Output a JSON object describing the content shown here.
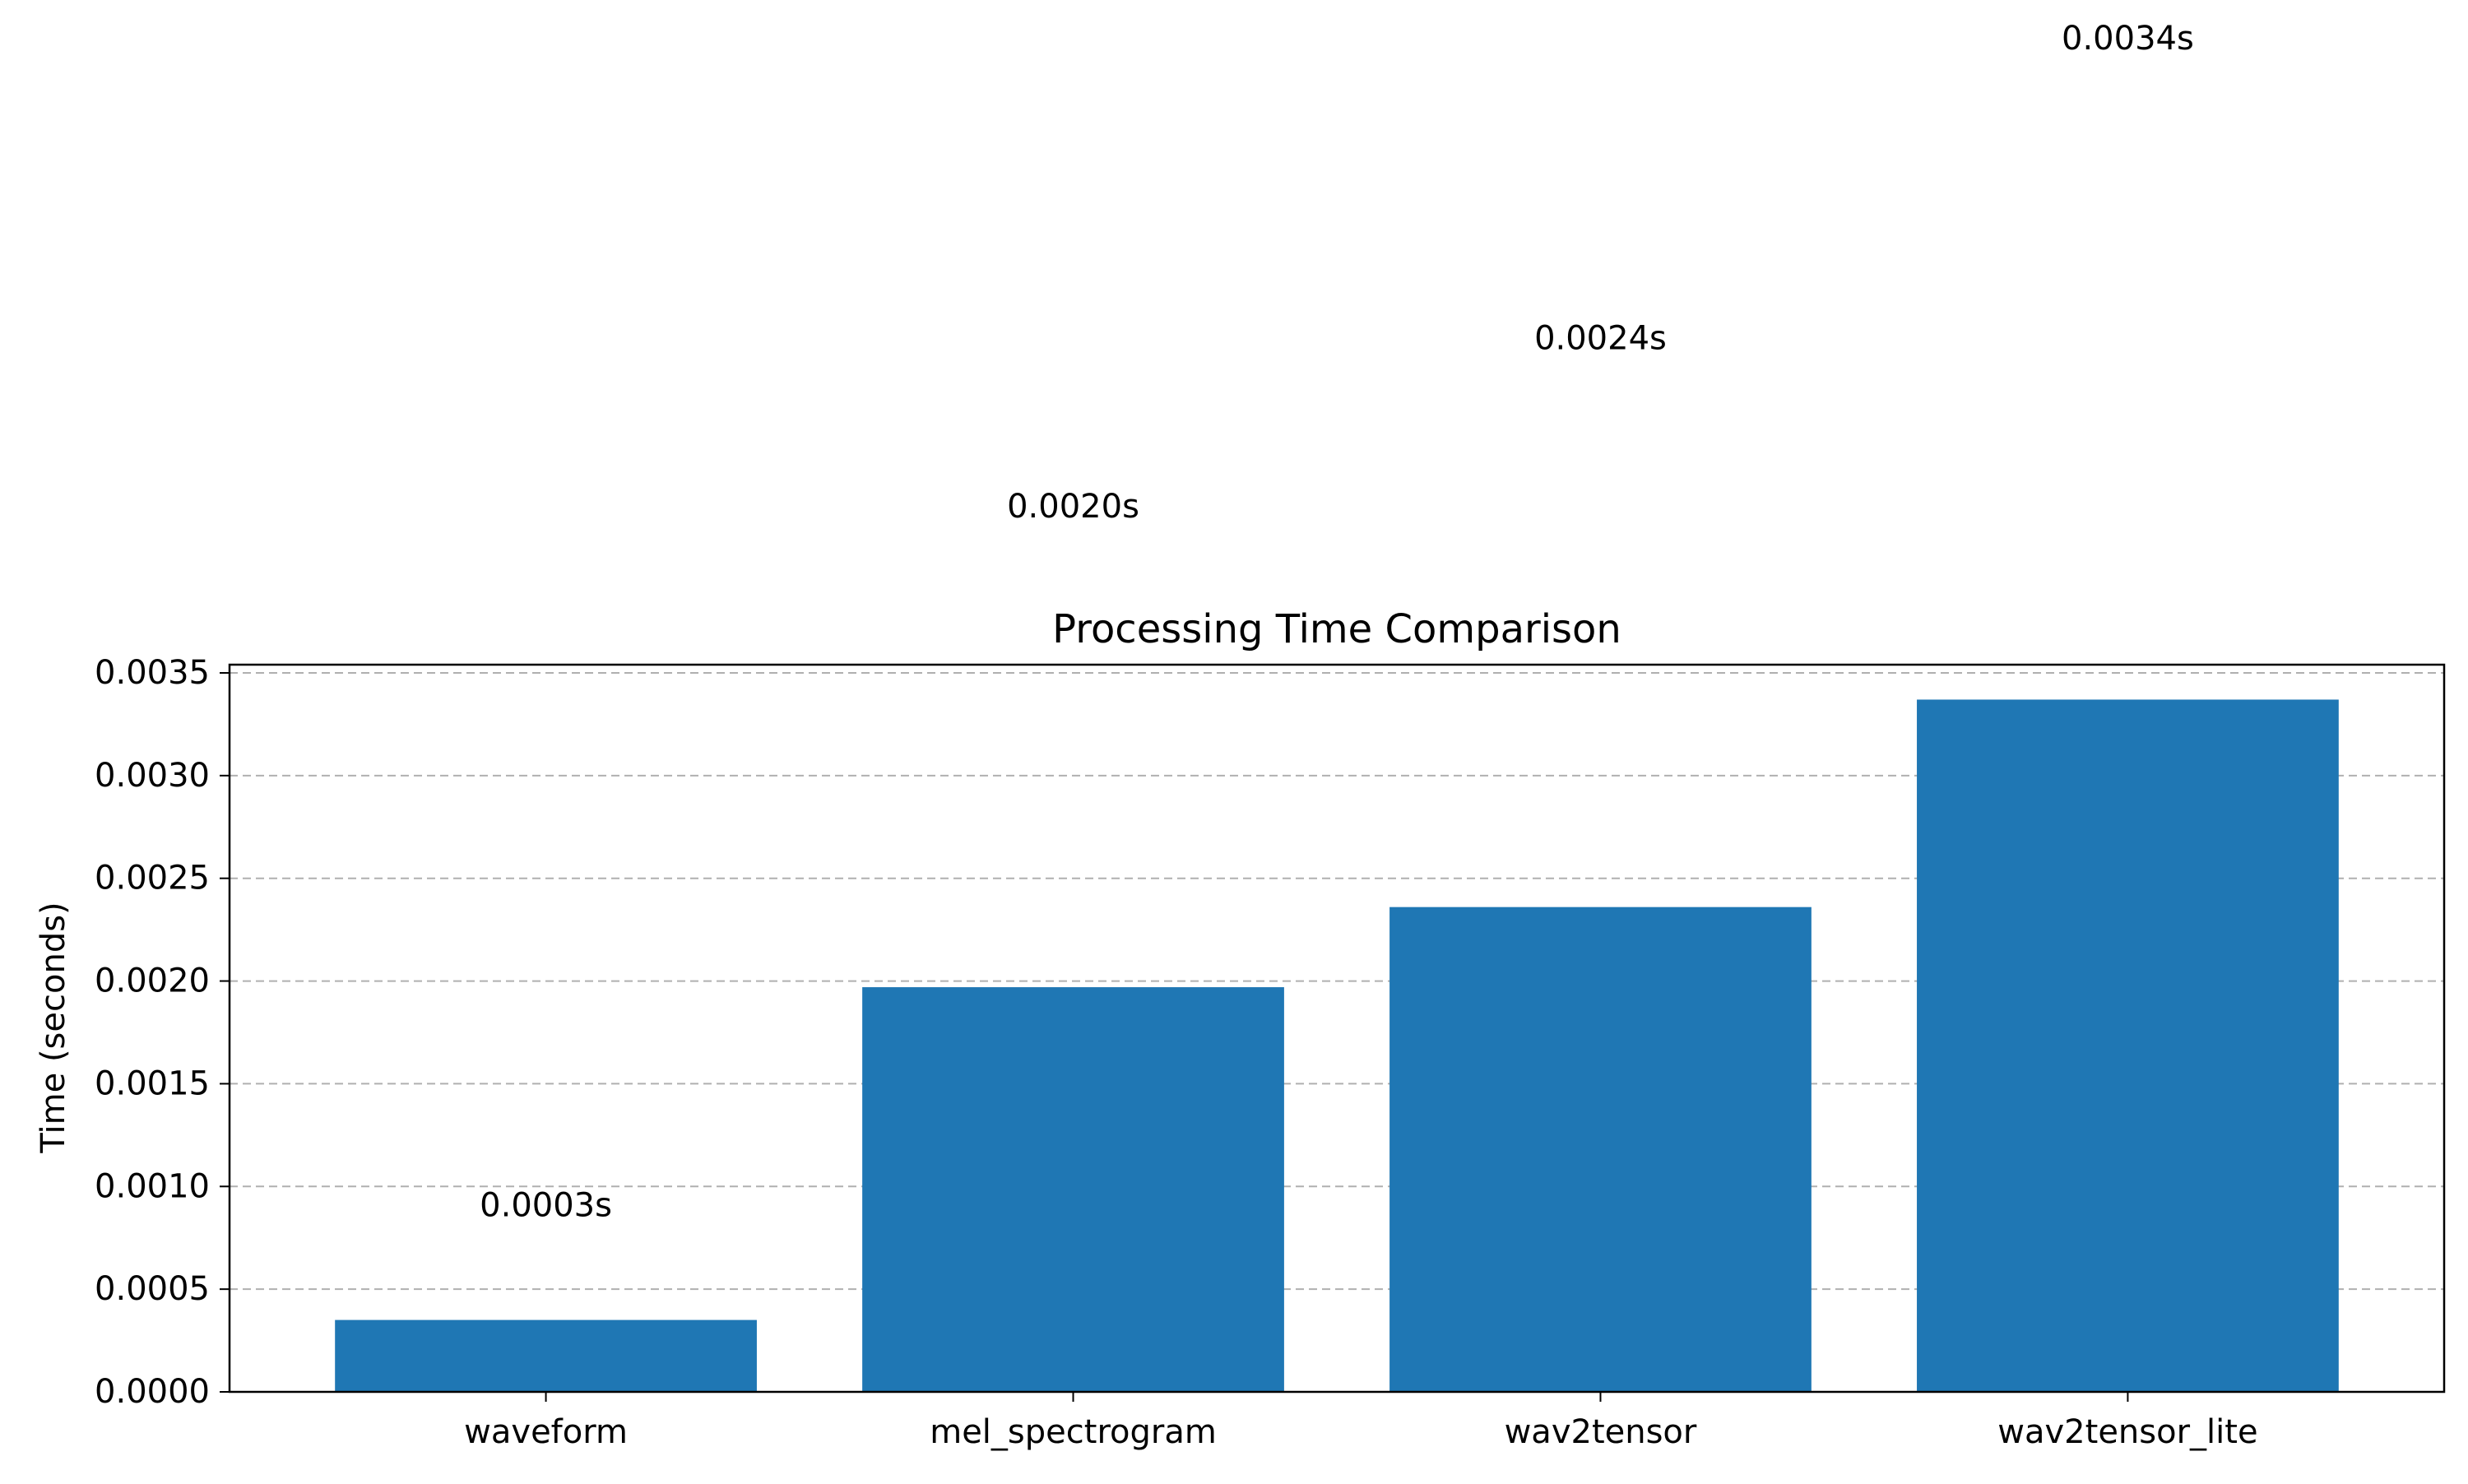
{
  "chart_data": {
    "type": "bar",
    "title": "Processing Time Comparison",
    "xlabel": "",
    "ylabel": "Time (seconds)",
    "categories": [
      "waveform",
      "mel_spectrogram",
      "wav2tensor",
      "wav2tensor_lite"
    ],
    "values": [
      0.00035,
      0.00197,
      0.00236,
      0.00337
    ],
    "data_labels": [
      "0.0003s",
      "0.0020s",
      "0.0024s",
      "0.0034s"
    ],
    "yticks": [
      0.0,
      0.0005,
      0.001,
      0.0015,
      0.002,
      0.0025,
      0.003,
      0.0035
    ],
    "ytick_labels": [
      "0.0000",
      "0.0005",
      "0.0010",
      "0.0015",
      "0.0020",
      "0.0025",
      "0.0030",
      "0.0035"
    ],
    "ylim": [
      0,
      0.00354
    ],
    "grid": "y-dashed",
    "bar_color": "#1f77b4",
    "grid_color": "#b0b0b0"
  }
}
